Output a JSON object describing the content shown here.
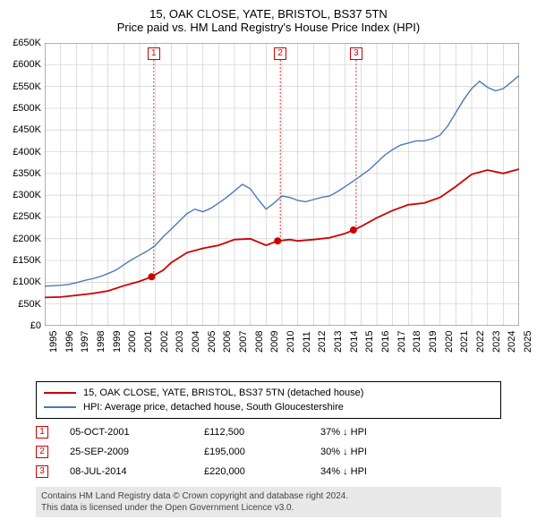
{
  "title": {
    "line1": "15, OAK CLOSE, YATE, BRISTOL, BS37 5TN",
    "line2": "Price paid vs. HM Land Registry's House Price Index (HPI)",
    "fontsize": 13,
    "color": "#000000"
  },
  "chart": {
    "type": "line",
    "background_color": "#ffffff",
    "grid_color": "#d0d0d0",
    "border_color": "#666666",
    "x": {
      "min": 1995,
      "max": 2025,
      "tick_step": 1,
      "label_fontsize": 11,
      "label_rotation": -90
    },
    "y": {
      "min": 0,
      "max": 650000,
      "tick_step": 50000,
      "label_prefix": "£",
      "label_suffix": "K",
      "label_fontsize": 11
    },
    "series": [
      {
        "name": "price_paid",
        "label": "15, OAK CLOSE, YATE, BRISTOL, BS37 5TN (detached house)",
        "color": "#cc0000",
        "line_width": 1.8,
        "points": [
          [
            1995.0,
            65000
          ],
          [
            1996.0,
            66000
          ],
          [
            1997.0,
            70000
          ],
          [
            1998.0,
            74000
          ],
          [
            1999.0,
            80000
          ],
          [
            2000.0,
            92000
          ],
          [
            2001.0,
            102000
          ],
          [
            2001.76,
            112500
          ],
          [
            2002.5,
            128000
          ],
          [
            2003.0,
            145000
          ],
          [
            2004.0,
            168000
          ],
          [
            2005.0,
            178000
          ],
          [
            2006.0,
            185000
          ],
          [
            2007.0,
            198000
          ],
          [
            2008.0,
            200000
          ],
          [
            2009.0,
            185000
          ],
          [
            2009.73,
            195000
          ],
          [
            2010.5,
            198000
          ],
          [
            2011.0,
            195000
          ],
          [
            2012.0,
            198000
          ],
          [
            2013.0,
            202000
          ],
          [
            2014.0,
            212000
          ],
          [
            2014.52,
            220000
          ],
          [
            2015.0,
            228000
          ],
          [
            2016.0,
            248000
          ],
          [
            2017.0,
            265000
          ],
          [
            2018.0,
            278000
          ],
          [
            2019.0,
            282000
          ],
          [
            2020.0,
            295000
          ],
          [
            2021.0,
            320000
          ],
          [
            2022.0,
            348000
          ],
          [
            2023.0,
            358000
          ],
          [
            2024.0,
            350000
          ],
          [
            2025.0,
            360000
          ]
        ],
        "markers": [
          {
            "num": "1",
            "x": 2001.76,
            "y": 112500,
            "box_x": 2001.5,
            "box_top_y": 640000
          },
          {
            "num": "2",
            "x": 2009.73,
            "y": 195000,
            "box_x": 2009.5,
            "box_top_y": 640000
          },
          {
            "num": "3",
            "x": 2014.52,
            "y": 220000,
            "box_x": 2014.3,
            "box_top_y": 640000
          }
        ],
        "marker_dot_radius": 4,
        "marker_box_color": "#cc0000"
      },
      {
        "name": "hpi",
        "label": "HPI: Average price, detached house, South Gloucestershire",
        "color": "#4a7ab8",
        "line_width": 1.4,
        "points": [
          [
            1995.0,
            91000
          ],
          [
            1995.5,
            92000
          ],
          [
            1996.0,
            93000
          ],
          [
            1996.5,
            95000
          ],
          [
            1997.0,
            99000
          ],
          [
            1997.5,
            104000
          ],
          [
            1998.0,
            108000
          ],
          [
            1998.5,
            113000
          ],
          [
            1999.0,
            120000
          ],
          [
            1999.5,
            128000
          ],
          [
            2000.0,
            140000
          ],
          [
            2000.5,
            152000
          ],
          [
            2001.0,
            162000
          ],
          [
            2001.5,
            172000
          ],
          [
            2002.0,
            185000
          ],
          [
            2002.5,
            205000
          ],
          [
            2003.0,
            222000
          ],
          [
            2003.5,
            240000
          ],
          [
            2004.0,
            258000
          ],
          [
            2004.5,
            268000
          ],
          [
            2005.0,
            262000
          ],
          [
            2005.5,
            270000
          ],
          [
            2006.0,
            282000
          ],
          [
            2006.5,
            295000
          ],
          [
            2007.0,
            310000
          ],
          [
            2007.5,
            325000
          ],
          [
            2008.0,
            315000
          ],
          [
            2008.5,
            290000
          ],
          [
            2009.0,
            268000
          ],
          [
            2009.5,
            282000
          ],
          [
            2010.0,
            298000
          ],
          [
            2010.5,
            295000
          ],
          [
            2011.0,
            288000
          ],
          [
            2011.5,
            285000
          ],
          [
            2012.0,
            290000
          ],
          [
            2012.5,
            295000
          ],
          [
            2013.0,
            298000
          ],
          [
            2013.5,
            308000
          ],
          [
            2014.0,
            320000
          ],
          [
            2014.5,
            332000
          ],
          [
            2015.0,
            345000
          ],
          [
            2015.5,
            358000
          ],
          [
            2016.0,
            375000
          ],
          [
            2016.5,
            392000
          ],
          [
            2017.0,
            405000
          ],
          [
            2017.5,
            415000
          ],
          [
            2018.0,
            420000
          ],
          [
            2018.5,
            425000
          ],
          [
            2019.0,
            425000
          ],
          [
            2019.5,
            430000
          ],
          [
            2020.0,
            438000
          ],
          [
            2020.5,
            460000
          ],
          [
            2021.0,
            490000
          ],
          [
            2021.5,
            520000
          ],
          [
            2022.0,
            545000
          ],
          [
            2022.5,
            562000
          ],
          [
            2023.0,
            548000
          ],
          [
            2023.5,
            540000
          ],
          [
            2024.0,
            545000
          ],
          [
            2024.5,
            560000
          ],
          [
            2025.0,
            575000
          ]
        ]
      }
    ]
  },
  "legend": {
    "border_color": "#000000",
    "fontsize": 11,
    "items": [
      {
        "color": "#cc0000",
        "label": "15, OAK CLOSE, YATE, BRISTOL, BS37 5TN (detached house)"
      },
      {
        "color": "#4a7ab8",
        "label": "HPI: Average price, detached house, South Gloucestershire"
      }
    ]
  },
  "transactions": {
    "fontsize": 11,
    "rows": [
      {
        "num": "1",
        "date": "05-OCT-2001",
        "price": "£112,500",
        "pct": "37% ↓ HPI"
      },
      {
        "num": "2",
        "date": "25-SEP-2009",
        "price": "£195,000",
        "pct": "30% ↓ HPI"
      },
      {
        "num": "3",
        "date": "08-JUL-2014",
        "price": "£220,000",
        "pct": "34% ↓ HPI"
      }
    ]
  },
  "footer": {
    "background_color": "#e8e8e8",
    "fontsize": 10,
    "color": "#444444",
    "line1": "Contains HM Land Registry data © Crown copyright and database right 2024.",
    "line2": "This data is licensed under the Open Government Licence v3.0."
  }
}
